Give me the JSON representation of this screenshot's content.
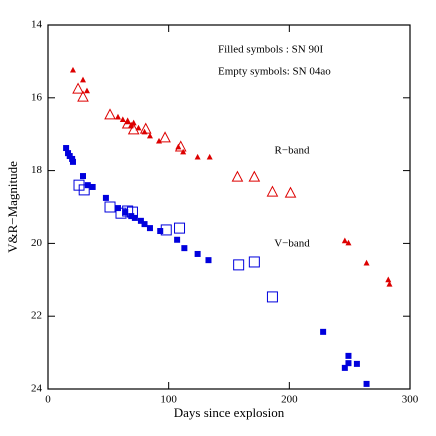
{
  "chart_data": {
    "type": "scatter",
    "xlabel": "Days since explosion",
    "ylabel": "V&R−Magnitude",
    "xlim": [
      0,
      300
    ],
    "xticks": [
      0,
      100,
      200,
      300
    ],
    "ylim": [
      24,
      14
    ],
    "yticks": [
      14,
      16,
      18,
      20,
      22,
      24
    ],
    "annotations": [
      "Filled symbols : SN 90I",
      "Empty symbols: SN 04ao",
      "R−band",
      "V−band"
    ],
    "series": [
      {
        "color": "#dd0000",
        "marker": "triangle",
        "filled": true,
        "x": [
          20.7,
          29,
          32.3,
          58,
          62,
          66,
          69,
          71,
          75,
          80,
          84.5,
          92,
          108,
          112,
          124,
          134,
          246,
          249,
          264,
          282,
          283
        ],
        "values": [
          15.24,
          15.51,
          15.81,
          16.53,
          16.6,
          16.66,
          16.75,
          16.69,
          16.83,
          16.94,
          17.05,
          17.19,
          17.35,
          17.49,
          17.63,
          17.63,
          19.93,
          19.99,
          20.54,
          21.0,
          21.12
        ]
      },
      {
        "color": "#dd0000",
        "marker": "triangle",
        "filled": false,
        "x": [
          24.9,
          29,
          51.4,
          66,
          71,
          81,
          97,
          110,
          157,
          171,
          186,
          201
        ],
        "values": [
          15.76,
          15.98,
          16.47,
          16.72,
          16.88,
          16.86,
          17.1,
          17.35,
          18.18,
          18.18,
          18.59,
          18.62
        ]
      },
      {
        "color": "#0000dd",
        "marker": "square",
        "filled": true,
        "x": [
          15,
          16.6,
          18,
          20,
          20.7,
          29,
          33,
          37,
          48,
          58,
          64,
          69,
          72,
          77,
          80,
          84.5,
          93,
          107,
          113,
          124,
          133,
          228,
          246,
          249,
          249,
          256,
          264
        ],
        "values": [
          17.38,
          17.52,
          17.6,
          17.68,
          17.76,
          18.15,
          18.4,
          18.45,
          18.75,
          19.03,
          19.14,
          19.25,
          19.3,
          19.38,
          19.47,
          19.58,
          19.66,
          19.9,
          20.13,
          20.29,
          20.46,
          22.43,
          23.42,
          23.09,
          23.29,
          23.31,
          23.86
        ]
      },
      {
        "color": "#0000dd",
        "marker": "square",
        "filled": false,
        "x": [
          25.7,
          30,
          51.4,
          60.5,
          66,
          70,
          98,
          109,
          158,
          171,
          186
        ],
        "values": [
          18.4,
          18.53,
          19.0,
          19.17,
          19.11,
          19.14,
          19.63,
          19.58,
          20.59,
          20.51,
          21.47
        ]
      }
    ]
  }
}
